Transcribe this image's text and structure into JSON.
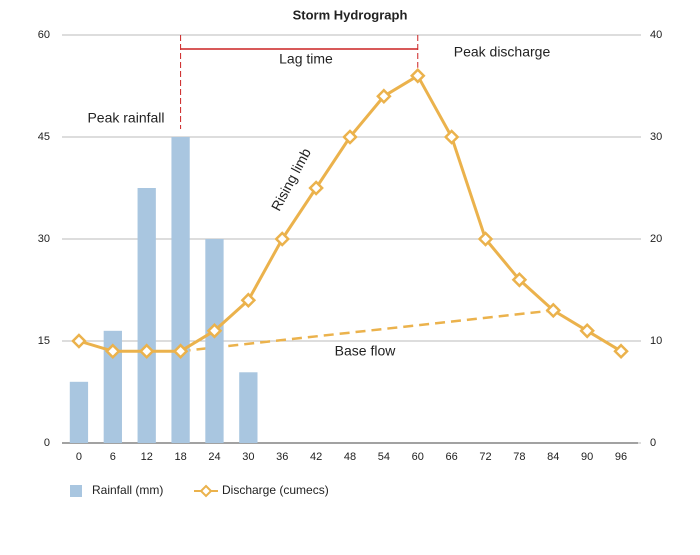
{
  "chart_data": {
    "type": "bar-line",
    "title": "Storm Hydrograph",
    "x": [
      0,
      6,
      12,
      18,
      24,
      30,
      36,
      42,
      48,
      54,
      60,
      66,
      72,
      78,
      84,
      90,
      96
    ],
    "xlim": [
      -3,
      99
    ],
    "series": [
      {
        "name": "Rainfall (mm)",
        "type": "bar",
        "color": "#a9c6e0",
        "values": [
          9,
          16.5,
          37.5,
          45,
          30,
          10.4,
          null,
          null,
          null,
          null,
          null,
          null,
          null,
          null,
          null,
          null,
          null
        ]
      },
      {
        "name": "Discharge (cumecs)",
        "type": "line",
        "axis": "y2",
        "color": "#ebb24c",
        "values": [
          10,
          9,
          9,
          9,
          11,
          14,
          20,
          25,
          30,
          34,
          36,
          30,
          20,
          16,
          13,
          11,
          9
        ]
      }
    ],
    "ylim": [
      0,
      60
    ],
    "yticks": [
      0,
      15,
      30,
      45,
      60
    ],
    "y2lim": [
      0,
      40
    ],
    "y2ticks": [
      0,
      10,
      20,
      30,
      40
    ],
    "grid": true,
    "legend": "bottom-left",
    "annotations": {
      "lag_time": {
        "label": "Lag time",
        "from": 18,
        "to": 60,
        "color": "#cc2222"
      },
      "peak_rainfall": {
        "label": "Peak rainfall",
        "color": "#a9c6e0"
      },
      "peak_discharge": {
        "label": "Peak discharge",
        "color": "#ebb24c"
      },
      "rising_limb": {
        "label": "Rising limb"
      },
      "base_flow": {
        "label": "Base flow",
        "x": [
          18,
          84
        ],
        "y": [
          9,
          13
        ],
        "color": "#ebb24c"
      }
    }
  }
}
